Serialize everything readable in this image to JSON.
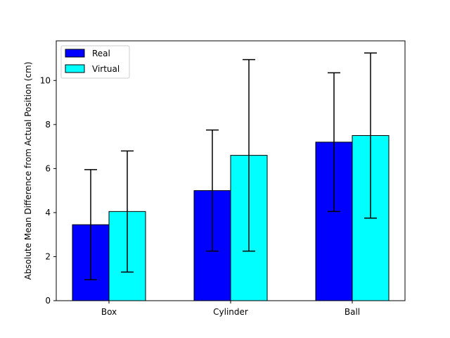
{
  "chart_data": {
    "type": "bar",
    "title": "",
    "xlabel": "",
    "ylabel": "Absolute Mean Difference from Actual Position (cm)",
    "categories": [
      "Box",
      "Cylinder",
      "Ball"
    ],
    "series": [
      {
        "name": "Real",
        "color": "#0000ff",
        "values": [
          3.45,
          5.0,
          7.2
        ],
        "error": [
          2.5,
          2.75,
          3.15
        ]
      },
      {
        "name": "Virtual",
        "color": "#00ffff",
        "values": [
          4.05,
          6.6,
          7.5
        ],
        "error": [
          2.75,
          4.35,
          3.75
        ]
      }
    ],
    "ylim": [
      0,
      11.8
    ],
    "yticks": [
      0,
      2,
      4,
      6,
      8,
      10
    ],
    "grid": false,
    "legend_position": "top-left"
  }
}
